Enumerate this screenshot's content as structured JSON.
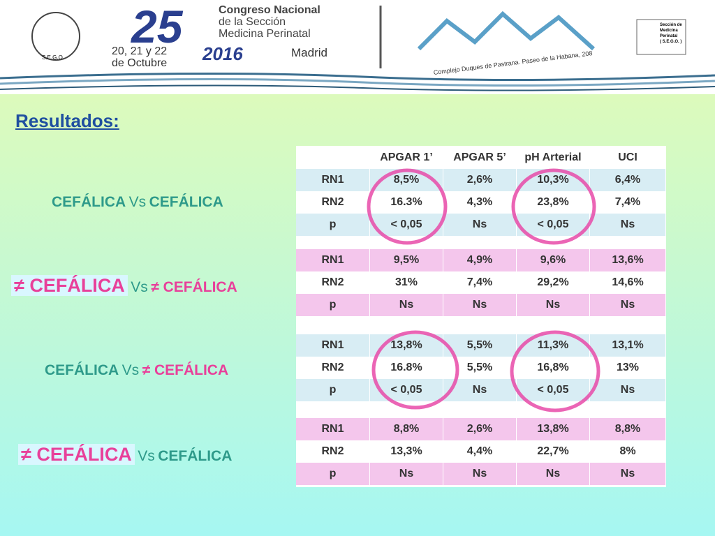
{
  "header": {
    "number": "25",
    "congress": [
      "Congreso Nacional",
      "de la Sección",
      "Medicina Perinatal"
    ],
    "dates": [
      "20, 21 y 22",
      "de Octubre"
    ],
    "year": "2016",
    "city": "Madrid",
    "venue": "Complejo Duques de Pastrana. Paseo de la Habana, 208",
    "left_logo": "S.E.G.O.",
    "right_logo": [
      "Sección de",
      "Medicina",
      "Perinatal",
      "( S.E.G.O. )"
    ]
  },
  "title": "Resultados:",
  "comparisons": [
    [
      "CEFÁLICA",
      "Vs",
      "CEFÁLICA"
    ],
    [
      "≠ CEFÁLICA",
      "Vs",
      "≠ CEFÁLICA"
    ],
    [
      "CEFÁLICA",
      "Vs",
      "≠ CEFÁLICA"
    ],
    [
      "≠ CEFÁLICA",
      "Vs",
      "CEFÁLICA"
    ]
  ],
  "table": {
    "columns": [
      "APGAR 1’",
      "APGAR 5’",
      "pH Arterial",
      "UCI"
    ],
    "groups": [
      [
        [
          "RN1",
          "8,5%",
          "2,6%",
          "10,3%",
          "6,4%"
        ],
        [
          "RN2",
          "16.3%",
          "4,3%",
          "23,8%",
          "7,4%"
        ],
        [
          "p",
          "< 0,05",
          "Ns",
          "< 0,05",
          "Ns"
        ]
      ],
      [
        [
          "RN1",
          "9,5%",
          "4,9%",
          "9,6%",
          "13,6%"
        ],
        [
          "RN2",
          "31%",
          "7,4%",
          "29,2%",
          "14,6%"
        ],
        [
          "p",
          "Ns",
          "Ns",
          "Ns",
          "Ns"
        ]
      ],
      [
        [
          "RN1",
          "13,8%",
          "5,5%",
          "11,3%",
          "13,1%"
        ],
        [
          "RN2",
          "16.8%",
          "5,5%",
          "16,8%",
          "13%"
        ],
        [
          "p",
          "< 0,05",
          "Ns",
          "< 0,05",
          "Ns"
        ]
      ],
      [
        [
          "RN1",
          "8,8%",
          "2,6%",
          "13,8%",
          "8,8%"
        ],
        [
          "RN2",
          "13,3%",
          "4,4%",
          "22,7%",
          "8%"
        ],
        [
          "p",
          "Ns",
          "Ns",
          "Ns",
          "Ns"
        ]
      ]
    ]
  }
}
